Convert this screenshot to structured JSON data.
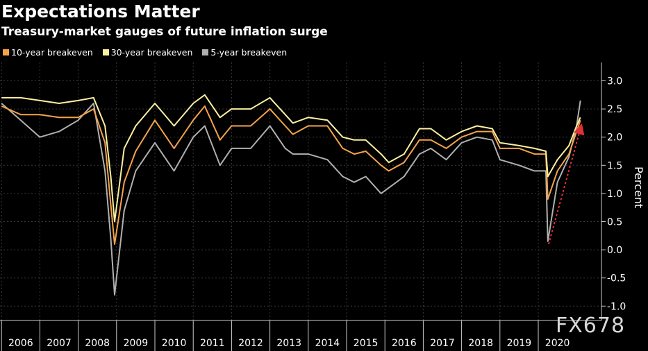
{
  "chart_data": {
    "type": "line",
    "title": "Expectations Matter",
    "subtitle": "Treasury-market gauges of future inflation surge",
    "ylabel": "Percent",
    "xlabel": "",
    "ylim": [
      -1.0,
      3.0
    ],
    "yticks": [
      "3.0",
      "2.5",
      "2.0",
      "1.5",
      "1.0",
      "0.5",
      "0.0",
      "-0.5",
      "-1.0"
    ],
    "xticks": [
      "2006",
      "2007",
      "2008",
      "2009",
      "2010",
      "2011",
      "2012",
      "2013",
      "2014",
      "2015",
      "2016",
      "2017",
      "2018",
      "2019",
      "2020"
    ],
    "grid": true,
    "legend_placement": "top-left",
    "series": [
      {
        "name": "10-year breakeven",
        "color": "#f5a34a",
        "x": [
          2006.0,
          2006.5,
          2007.0,
          2007.5,
          2008.0,
          2008.4,
          2008.7,
          2008.85,
          2008.95,
          2009.2,
          2009.5,
          2010.0,
          2010.5,
          2011.0,
          2011.3,
          2011.7,
          2012.0,
          2012.5,
          2013.0,
          2013.4,
          2013.6,
          2014.0,
          2014.5,
          2014.9,
          2015.2,
          2015.5,
          2015.9,
          2016.1,
          2016.5,
          2016.9,
          2017.2,
          2017.6,
          2018.0,
          2018.4,
          2018.8,
          2019.0,
          2019.5,
          2019.9,
          2020.2,
          2020.25,
          2020.5,
          2020.8,
          2021.0,
          2021.1
        ],
        "y": [
          2.55,
          2.4,
          2.4,
          2.35,
          2.35,
          2.5,
          1.9,
          0.8,
          0.1,
          1.2,
          1.75,
          2.3,
          1.8,
          2.3,
          2.55,
          1.95,
          2.2,
          2.2,
          2.5,
          2.2,
          2.05,
          2.2,
          2.2,
          1.8,
          1.7,
          1.75,
          1.5,
          1.4,
          1.55,
          1.95,
          1.95,
          1.8,
          2.0,
          2.1,
          2.1,
          1.8,
          1.8,
          1.7,
          1.7,
          0.9,
          1.4,
          1.7,
          2.1,
          2.3
        ]
      },
      {
        "name": "30-year breakeven",
        "color": "#fbf0a0",
        "x": [
          2006.0,
          2006.5,
          2007.0,
          2007.5,
          2008.0,
          2008.4,
          2008.7,
          2008.85,
          2008.95,
          2009.2,
          2009.5,
          2010.0,
          2010.5,
          2011.0,
          2011.3,
          2011.7,
          2012.0,
          2012.5,
          2013.0,
          2013.4,
          2013.6,
          2014.0,
          2014.5,
          2014.9,
          2015.2,
          2015.5,
          2015.9,
          2016.1,
          2016.5,
          2016.9,
          2017.2,
          2017.6,
          2018.0,
          2018.4,
          2018.8,
          2019.0,
          2019.5,
          2019.9,
          2020.2,
          2020.25,
          2020.5,
          2020.8,
          2021.0,
          2021.1
        ],
        "y": [
          2.7,
          2.7,
          2.65,
          2.6,
          2.65,
          2.7,
          2.2,
          1.3,
          0.5,
          1.8,
          2.2,
          2.6,
          2.2,
          2.6,
          2.75,
          2.35,
          2.5,
          2.5,
          2.7,
          2.4,
          2.25,
          2.35,
          2.3,
          2.0,
          1.95,
          1.95,
          1.7,
          1.55,
          1.7,
          2.15,
          2.15,
          1.95,
          2.1,
          2.2,
          2.15,
          1.9,
          1.85,
          1.8,
          1.75,
          1.3,
          1.6,
          1.85,
          2.2,
          2.35
        ]
      },
      {
        "name": "5-year breakeven",
        "color": "#b0b0b0",
        "x": [
          2006.0,
          2006.5,
          2007.0,
          2007.5,
          2008.0,
          2008.4,
          2008.7,
          2008.85,
          2008.95,
          2009.2,
          2009.5,
          2010.0,
          2010.5,
          2011.0,
          2011.3,
          2011.7,
          2012.0,
          2012.5,
          2013.0,
          2013.4,
          2013.6,
          2014.0,
          2014.5,
          2014.9,
          2015.2,
          2015.5,
          2015.9,
          2016.1,
          2016.5,
          2016.9,
          2017.2,
          2017.6,
          2018.0,
          2018.4,
          2018.8,
          2019.0,
          2019.5,
          2019.9,
          2020.2,
          2020.25,
          2020.5,
          2020.8,
          2021.0,
          2021.1
        ],
        "y": [
          2.6,
          2.3,
          2.0,
          2.1,
          2.3,
          2.6,
          1.4,
          0.2,
          -0.8,
          0.7,
          1.4,
          1.9,
          1.4,
          2.0,
          2.2,
          1.5,
          1.8,
          1.8,
          2.2,
          1.8,
          1.7,
          1.7,
          1.6,
          1.3,
          1.2,
          1.3,
          1.0,
          1.1,
          1.3,
          1.7,
          1.8,
          1.6,
          1.9,
          2.0,
          1.95,
          1.6,
          1.5,
          1.4,
          1.4,
          0.15,
          1.2,
          1.65,
          2.2,
          2.65
        ]
      }
    ]
  },
  "legend": {
    "items": [
      {
        "label": "10-year breakeven",
        "color": "#f5a34a"
      },
      {
        "label": "30-year breakeven",
        "color": "#fbf0a0"
      },
      {
        "label": "5-year breakeven",
        "color": "#b0b0b0"
      }
    ]
  },
  "watermark": "FX678"
}
